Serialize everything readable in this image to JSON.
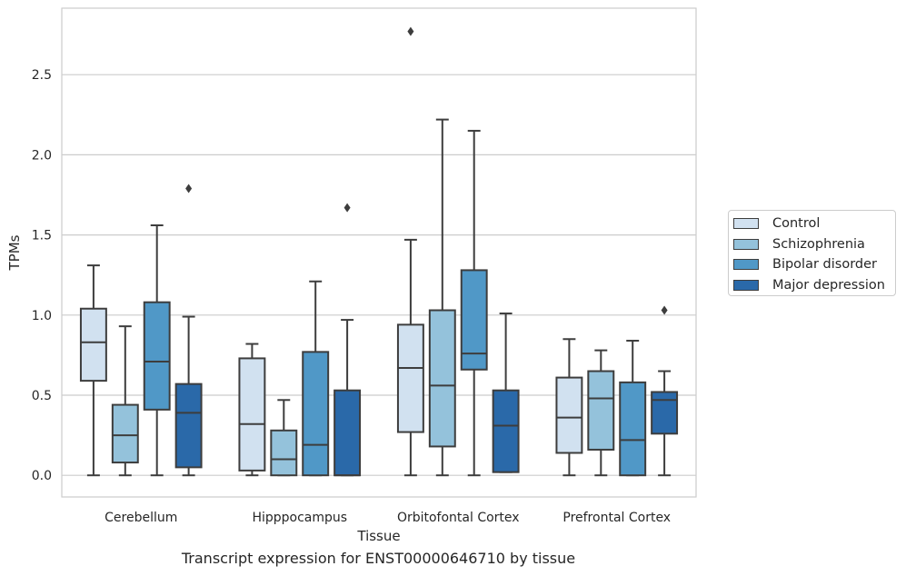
{
  "chart_data": {
    "type": "box",
    "title": "",
    "caption": "Transcript expression for ENST00000646710 by tissue",
    "xlabel": "Tissue",
    "ylabel": "TPMs",
    "ylim": [
      -0.135,
      2.915
    ],
    "yticks": [
      "0.0",
      "0.5",
      "1.0",
      "1.5",
      "2.0",
      "2.5"
    ],
    "categories": [
      "Cerebellum",
      "Hipppocampus",
      "Orbitofontal Cortex",
      "Prefrontal Cortex"
    ],
    "grid": true,
    "legend_position": "right",
    "series": [
      {
        "name": "Control",
        "color": "#d1e1f0",
        "boxes": [
          {
            "whislo": 0.0,
            "q1": 0.59,
            "med": 0.83,
            "q3": 1.04,
            "whishi": 1.31,
            "fliers": []
          },
          {
            "whislo": 0.0,
            "q1": 0.03,
            "med": 0.32,
            "q3": 0.73,
            "whishi": 0.82,
            "fliers": []
          },
          {
            "whislo": 0.0,
            "q1": 0.27,
            "med": 0.67,
            "q3": 0.94,
            "whishi": 1.47,
            "fliers": [
              2.77
            ]
          },
          {
            "whislo": 0.0,
            "q1": 0.14,
            "med": 0.36,
            "q3": 0.61,
            "whishi": 0.85,
            "fliers": []
          }
        ]
      },
      {
        "name": "Schizophrenia",
        "color": "#94c2db",
        "boxes": [
          {
            "whislo": 0.0,
            "q1": 0.08,
            "med": 0.25,
            "q3": 0.44,
            "whishi": 0.93,
            "fliers": []
          },
          {
            "whislo": 0.0,
            "q1": 0.0,
            "med": 0.1,
            "q3": 0.28,
            "whishi": 0.47,
            "fliers": []
          },
          {
            "whislo": 0.0,
            "q1": 0.18,
            "med": 0.56,
            "q3": 1.03,
            "whishi": 2.22,
            "fliers": []
          },
          {
            "whislo": 0.0,
            "q1": 0.16,
            "med": 0.48,
            "q3": 0.65,
            "whishi": 0.78,
            "fliers": []
          }
        ]
      },
      {
        "name": "Bipolar disorder",
        "color": "#5098c7",
        "boxes": [
          {
            "whislo": 0.0,
            "q1": 0.41,
            "med": 0.71,
            "q3": 1.08,
            "whishi": 1.56,
            "fliers": []
          },
          {
            "whislo": 0.0,
            "q1": 0.0,
            "med": 0.19,
            "q3": 0.77,
            "whishi": 1.21,
            "fliers": []
          },
          {
            "whislo": 0.0,
            "q1": 0.66,
            "med": 0.76,
            "q3": 1.28,
            "whishi": 2.15,
            "fliers": []
          },
          {
            "whislo": 0.0,
            "q1": 0.0,
            "med": 0.22,
            "q3": 0.58,
            "whishi": 0.84,
            "fliers": []
          }
        ]
      },
      {
        "name": "Major depression",
        "color": "#2a69a9",
        "boxes": [
          {
            "whislo": 0.0,
            "q1": 0.05,
            "med": 0.39,
            "q3": 0.57,
            "whishi": 0.99,
            "fliers": [
              1.79
            ]
          },
          {
            "whislo": 0.0,
            "q1": 0.0,
            "med": 0.0,
            "q3": 0.53,
            "whishi": 0.97,
            "fliers": [
              1.67
            ]
          },
          {
            "whislo": 0.02,
            "q1": 0.02,
            "med": 0.31,
            "q3": 0.53,
            "whishi": 1.01,
            "fliers": []
          },
          {
            "whislo": 0.0,
            "q1": 0.26,
            "med": 0.47,
            "q3": 0.52,
            "whishi": 0.65,
            "fliers": [
              1.03
            ]
          }
        ]
      }
    ]
  }
}
